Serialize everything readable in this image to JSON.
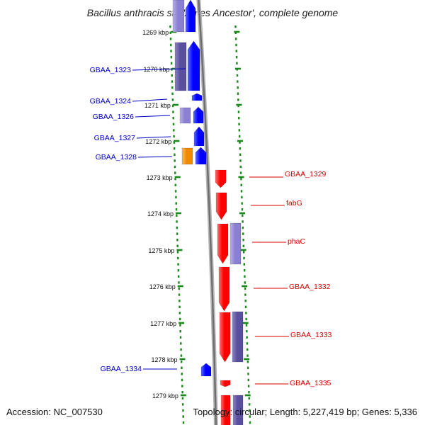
{
  "title": "Bacillus anthracis str. 'Ames Ancestor', complete genome",
  "accession": "Accession: NC_007530",
  "topology": "Topology: circular; Length: 5,227,419 bp; Genes: 5,336",
  "colors": {
    "forward_strand": "#0000ff",
    "reverse_strand": "#ff0000",
    "feature_purple": "#5a4f9e",
    "feature_lavender": "#8a7fd0",
    "feature_orange": "#f08a00",
    "label_forward": "#0000cc",
    "label_reverse": "#dd0000",
    "ticks": "#1a8a1a",
    "backbone": "#8c8c8c"
  },
  "ruler_ticks": [
    {
      "label": "1269 kbp"
    },
    {
      "label": "1270 kbp"
    },
    {
      "label": "1271 kbp"
    },
    {
      "label": "1272 kbp"
    },
    {
      "label": "1273 kbp"
    },
    {
      "label": "1274 kbp"
    },
    {
      "label": "1275 kbp"
    },
    {
      "label": "1276 kbp"
    },
    {
      "label": "1277 kbp"
    },
    {
      "label": "1278 kbp"
    },
    {
      "label": "1279 kbp"
    }
  ],
  "genes_left": [
    {
      "label": "GBAA_1323"
    },
    {
      "label": "GBAA_1324"
    },
    {
      "label": "GBAA_1326"
    },
    {
      "label": "GBAA_1327"
    },
    {
      "label": "GBAA_1328"
    },
    {
      "label": "GBAA_1334"
    }
  ],
  "genes_right": [
    {
      "label": "GBAA_1329"
    },
    {
      "label": "fabG"
    },
    {
      "label": "phaC"
    },
    {
      "label": "GBAA_1332"
    },
    {
      "label": "GBAA_1333"
    },
    {
      "label": "GBAA_1335"
    }
  ]
}
